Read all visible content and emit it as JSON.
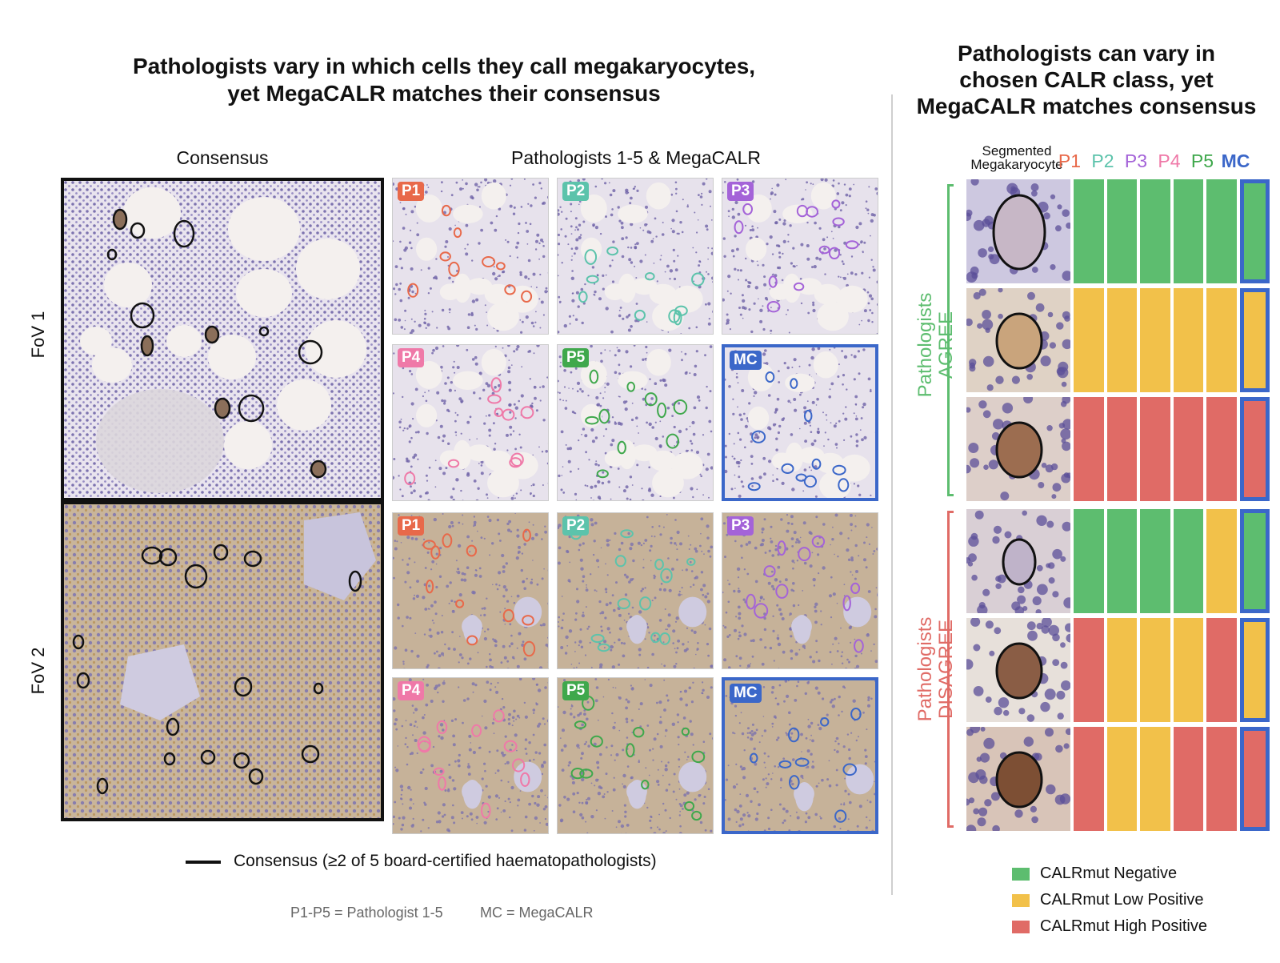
{
  "left_title": [
    "Pathologists vary in which cells they call megakaryocytes,",
    "yet MegaCALR matches their consensus"
  ],
  "right_title": [
    "Pathologists can vary in",
    "chosen CALR class, yet",
    "MegaCALR matches consensus"
  ],
  "col_headers": {
    "consensus": "Consensus",
    "others": "Pathologists 1-5 & MegaCALR"
  },
  "rows": {
    "fov1": "FoV 1",
    "fov2": "FoV 2"
  },
  "tags": [
    {
      "label": "P1",
      "color": "#e8694a"
    },
    {
      "label": "P2",
      "color": "#5cc3ab"
    },
    {
      "label": "P3",
      "color": "#a463d8"
    },
    {
      "label": "P4",
      "color": "#ef79a8"
    },
    {
      "label": "P5",
      "color": "#3fa84c"
    },
    {
      "label": "MC",
      "color": "#3b67c9"
    }
  ],
  "legend_line": "Consensus (≥2 of 5 board-certified haematopathologists)",
  "footnote_a": "P1-P5 = Pathologist 1-5",
  "footnote_b": "MC = MegaCALR",
  "seg_header": [
    "Segmented",
    "Megakaryocyte"
  ],
  "grid_headers": [
    {
      "label": "P1",
      "color": "#e8694a"
    },
    {
      "label": "P2",
      "color": "#5cc3ab"
    },
    {
      "label": "P3",
      "color": "#a463d8"
    },
    {
      "label": "P4",
      "color": "#ef79a8"
    },
    {
      "label": "P5",
      "color": "#3fa84c"
    },
    {
      "label": "MC",
      "color": "#3b67c9"
    }
  ],
  "groups": {
    "agree": [
      "Pathologists",
      "AGREE"
    ],
    "disagree": [
      "Pathologists",
      "DISAGREE"
    ],
    "agree_color": "#5dbd6f",
    "disagree_color": "#e06b66"
  },
  "class_colors": {
    "neg": "#5dbd6f",
    "low": "#f2c14a",
    "high": "#e06b66"
  },
  "grid": [
    [
      "neg",
      "neg",
      "neg",
      "neg",
      "neg",
      "neg"
    ],
    [
      "low",
      "low",
      "low",
      "low",
      "low",
      "low"
    ],
    [
      "high",
      "high",
      "high",
      "high",
      "high",
      "high"
    ],
    [
      "neg",
      "neg",
      "neg",
      "neg",
      "low",
      "neg"
    ],
    [
      "high",
      "low",
      "low",
      "low",
      "high",
      "low"
    ],
    [
      "high",
      "low",
      "low",
      "high",
      "high",
      "high"
    ]
  ],
  "legend": [
    {
      "label": "CALRmut Negative",
      "color": "#5dbd6f"
    },
    {
      "label": "CALRmut Low Positive",
      "color": "#f2c14a"
    },
    {
      "label": "CALRmut High Positive",
      "color": "#e06b66"
    }
  ],
  "mc_border_color": "#3b67c9"
}
